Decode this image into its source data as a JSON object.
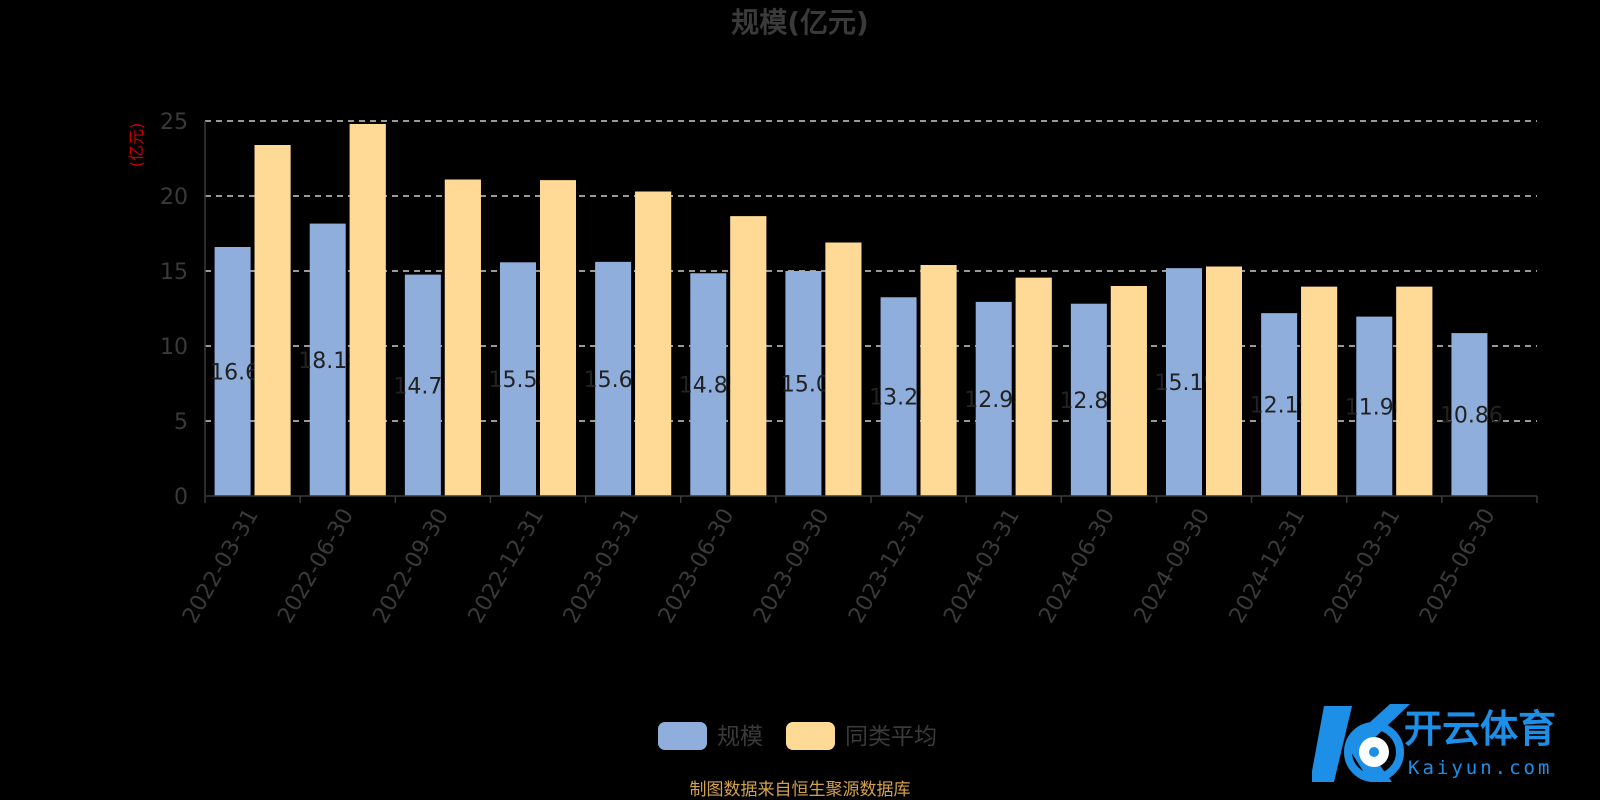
{
  "chart_data": {
    "type": "bar",
    "title": "规模(亿元)",
    "ylabel": "(亿元)",
    "ylim": [
      0,
      25
    ],
    "yticks": [
      0,
      5,
      10,
      15,
      20,
      25
    ],
    "grid": true,
    "legend_position": "bottom",
    "categories": [
      "2022-03-31",
      "2022-06-30",
      "2022-09-30",
      "2022-12-31",
      "2023-03-31",
      "2023-06-30",
      "2023-09-30",
      "2023-12-31",
      "2024-03-31",
      "2024-06-30",
      "2024-09-30",
      "2024-12-31",
      "2025-03-31",
      "2025-06-30"
    ],
    "series": [
      {
        "name": "规模",
        "color": "#8FAEDB",
        "values": [
          16.6,
          18.16,
          14.76,
          15.58,
          15.61,
          14.85,
          15.0,
          13.25,
          12.94,
          12.82,
          15.19,
          12.19,
          11.96,
          10.86
        ],
        "labels": [
          "16.6",
          "18.16",
          "14.76",
          "15.58",
          "15.61",
          "14.85",
          "15.0",
          "13.25",
          "12.94",
          "12.82",
          "15.19",
          "12.19",
          "11.96",
          "10.86"
        ]
      },
      {
        "name": "同类平均",
        "color": "#FFD996",
        "values": [
          23.4,
          24.8,
          21.1,
          21.05,
          20.3,
          18.65,
          16.9,
          15.4,
          14.55,
          14.0,
          15.3,
          13.95,
          13.95,
          null
        ]
      }
    ]
  },
  "footer": {
    "source": "制图数据来自恒生聚源数据库"
  },
  "watermark": {
    "brand": "开云体育",
    "domain": "Kaiyun.com"
  },
  "colors": {
    "grid": "#CCCCCC",
    "axis_text": "#3A3A3A",
    "title": "#3A3A3A",
    "ylabel": "#CC0000",
    "source": "#D4A24C",
    "logo_blue": "#1E8FE6"
  }
}
